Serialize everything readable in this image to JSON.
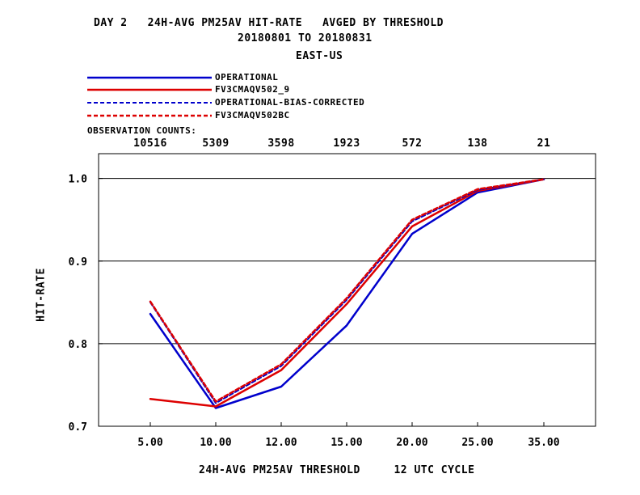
{
  "header": {
    "title_line1": "DAY 2   24H-AVG PM25AV HIT-RATE   AVGED BY THRESHOLD",
    "title_line2": "20180801 TO 20180831",
    "title_line3": "EAST-US"
  },
  "legend": {
    "items": [
      {
        "label": "OPERATIONAL",
        "color": "#0000cc",
        "style": "solid"
      },
      {
        "label": "FV3CMAQV502_9",
        "color": "#dd0000",
        "style": "solid"
      },
      {
        "label": "OPERATIONAL-BIAS-CORRECTED",
        "color": "#0000cc",
        "style": "dashed"
      },
      {
        "label": "FV3CMAQV502BC",
        "color": "#dd0000",
        "style": "dashed"
      }
    ]
  },
  "observation": {
    "heading": "OBSERVATION COUNTS:",
    "counts": [
      "10516",
      "5309",
      "3598",
      "1923",
      "572",
      "138",
      "21"
    ]
  },
  "footer": {
    "xlabel": "24H-AVG PM25AV THRESHOLD     12 UTC CYCLE"
  },
  "chart_data": {
    "type": "line",
    "title": "DAY 2   24H-AVG PM25AV HIT-RATE   AVGED BY THRESHOLD",
    "xlabel": "24H-AVG PM25AV THRESHOLD     12 UTC CYCLE",
    "ylabel": "HIT-RATE",
    "categories": [
      "5.00",
      "10.00",
      "12.00",
      "15.00",
      "20.00",
      "25.00",
      "35.00"
    ],
    "yticks": [
      "0.7",
      "0.8",
      "0.9",
      "1.0"
    ],
    "ylim": [
      0.7,
      1.03
    ],
    "grid": "horizontal",
    "series": [
      {
        "name": "OPERATIONAL",
        "color": "#0000cc",
        "dash": false,
        "width": 2.5,
        "values": [
          0.836,
          0.722,
          0.748,
          0.822,
          0.933,
          0.983,
          0.999
        ]
      },
      {
        "name": "FV3CMAQV502_9",
        "color": "#dd0000",
        "dash": false,
        "width": 2.5,
        "values": [
          0.733,
          0.724,
          0.768,
          0.848,
          0.942,
          0.985,
          0.999
        ]
      },
      {
        "name": "OPERATIONAL-BIAS-CORRECTED",
        "color": "#0000cc",
        "dash": true,
        "width": 2.0,
        "values": [
          0.85,
          0.728,
          0.773,
          0.853,
          0.948,
          0.986,
          0.999
        ]
      },
      {
        "name": "FV3CMAQV502BC",
        "color": "#dd0000",
        "dash": true,
        "width": 2.5,
        "values": [
          0.851,
          0.73,
          0.775,
          0.855,
          0.95,
          0.987,
          0.999
        ]
      }
    ]
  }
}
